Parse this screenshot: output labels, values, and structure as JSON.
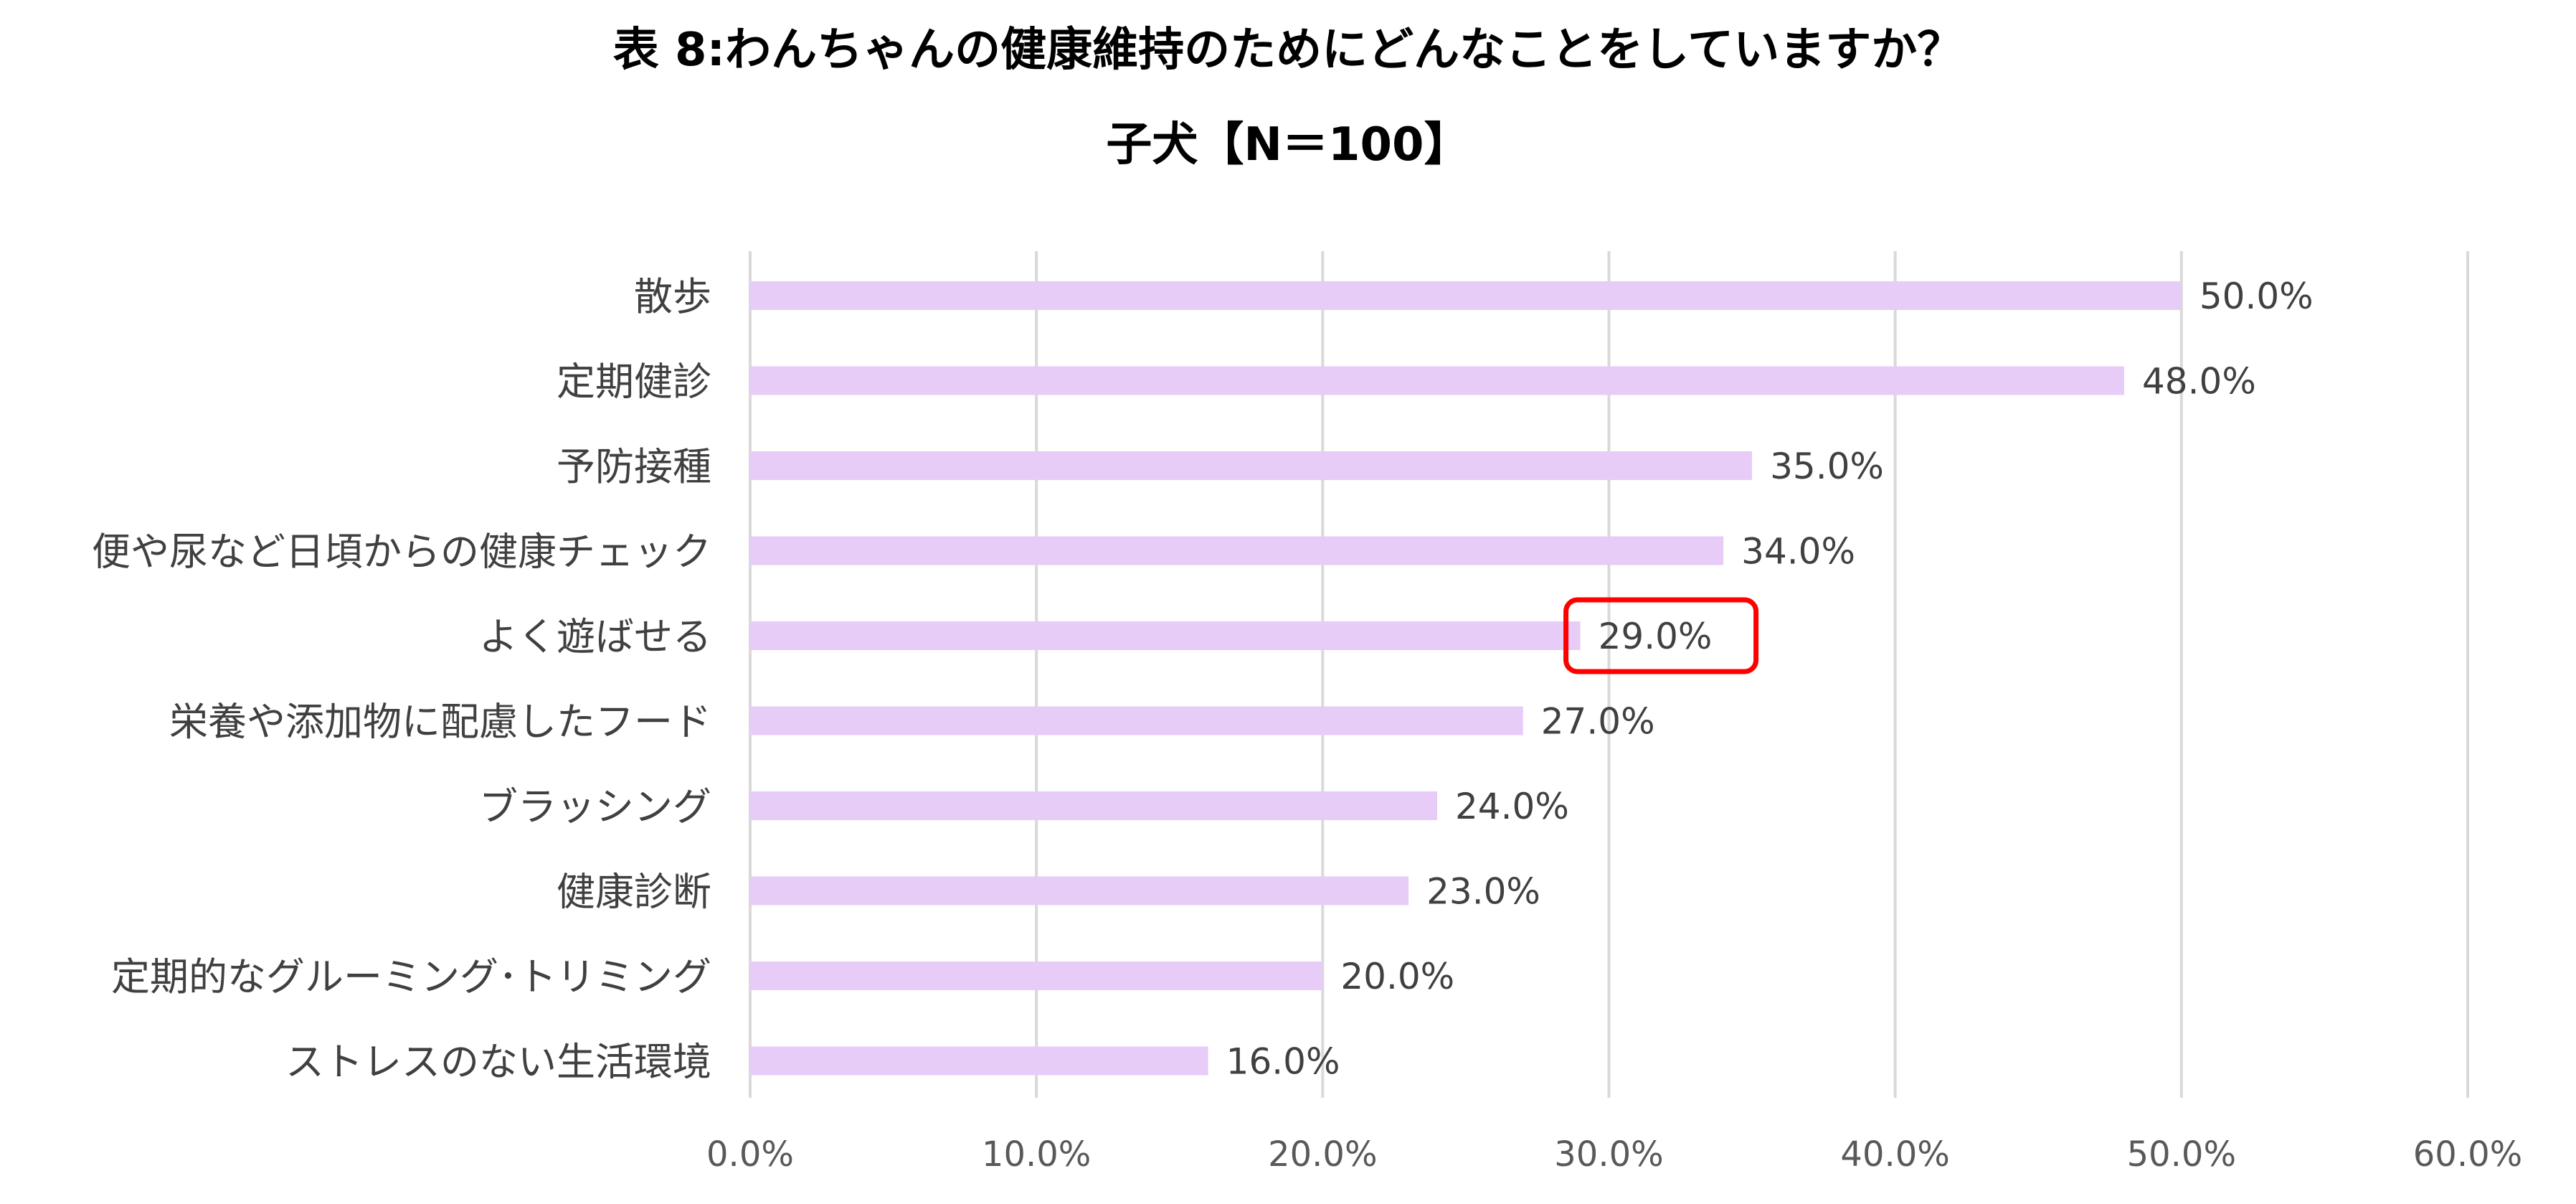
{
  "chart_data": {
    "type": "bar",
    "orientation": "horizontal",
    "title": "表 8:わんちゃんの健康維持のためにどんなことをしていますか？",
    "subtitle": "子犬【N＝100】",
    "categories": [
      "散歩",
      "定期健診",
      "予防接種",
      "便や尿など日頃からの健康チェック",
      "よく遊ばせる",
      "栄養や添加物に配慮したフード",
      "ブラッシング",
      "健康診断",
      "定期的なグルーミング･トリミング",
      "ストレスのない生活環境"
    ],
    "values": [
      50.0,
      48.0,
      35.0,
      34.0,
      29.0,
      27.0,
      24.0,
      23.0,
      20.0,
      16.0
    ],
    "value_labels": [
      "50.0%",
      "48.0%",
      "35.0%",
      "34.0%",
      "29.0%",
      "27.0%",
      "24.0%",
      "23.0%",
      "20.0%",
      "16.0%"
    ],
    "xlim": [
      0,
      60
    ],
    "x_ticks": [
      0,
      10,
      20,
      30,
      40,
      50,
      60
    ],
    "x_tick_labels": [
      "0.0%",
      "10.0%",
      "20.0%",
      "30.0%",
      "40.0%",
      "50.0%",
      "60.0%"
    ],
    "grid": true,
    "legend": "none",
    "highlighted_category": "よく遊ばせる",
    "colors": {
      "bar": "#e8ccf8",
      "grid": "#d9d9d9",
      "highlight_box": "#ff0000",
      "label_text": "#404040",
      "tick_text": "#595959"
    }
  }
}
